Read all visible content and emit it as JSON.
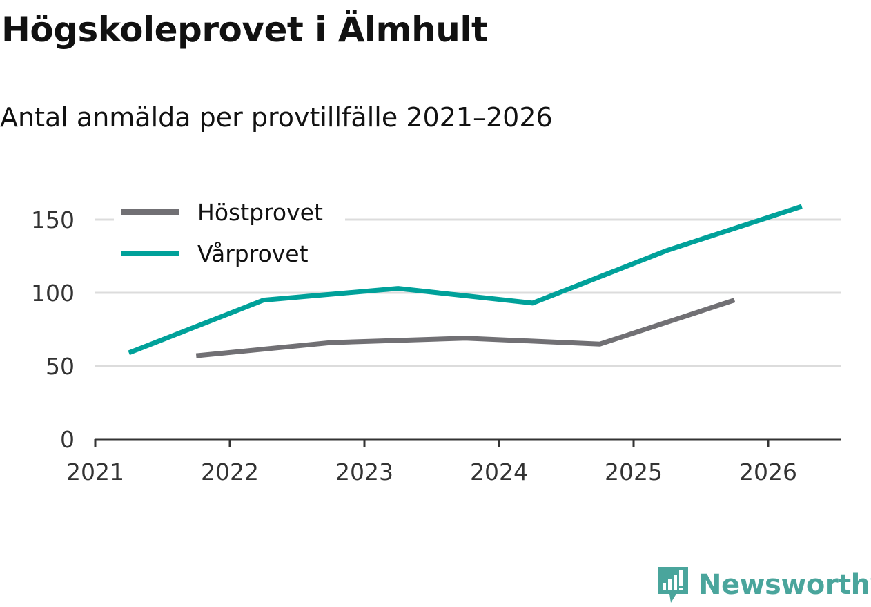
{
  "header": {
    "title": "Högskoleprovet i Älmhult",
    "subtitle": "Antal anmälda per provtillfälle 2021–2026"
  },
  "brand": {
    "name": "Newsworthy",
    "color": "#4aa59c"
  },
  "chart_data": {
    "type": "line",
    "title": "Högskoleprovet i Älmhult",
    "subtitle": "Antal anmälda per provtillfälle 2021–2026",
    "xlabel": "",
    "ylabel": "",
    "xlim": [
      2021,
      2026.55
    ],
    "ylim": [
      0,
      160
    ],
    "x_ticks": [
      2021,
      2022,
      2023,
      2024,
      2025,
      2026
    ],
    "y_ticks": [
      0,
      50,
      100,
      150
    ],
    "grid": true,
    "legend": "top-left",
    "series": [
      {
        "name": "Höstprovet",
        "color": "#717074",
        "x": [
          2021.75,
          2022.75,
          2023.75,
          2024.75,
          2025.75
        ],
        "values": [
          57,
          66,
          69,
          65,
          95
        ]
      },
      {
        "name": "Vårprovet",
        "color": "#00a19a",
        "x": [
          2021.25,
          2022.25,
          2023.25,
          2024.25,
          2025.25,
          2026.25
        ],
        "values": [
          59,
          95,
          103,
          93,
          129,
          159
        ]
      }
    ]
  }
}
